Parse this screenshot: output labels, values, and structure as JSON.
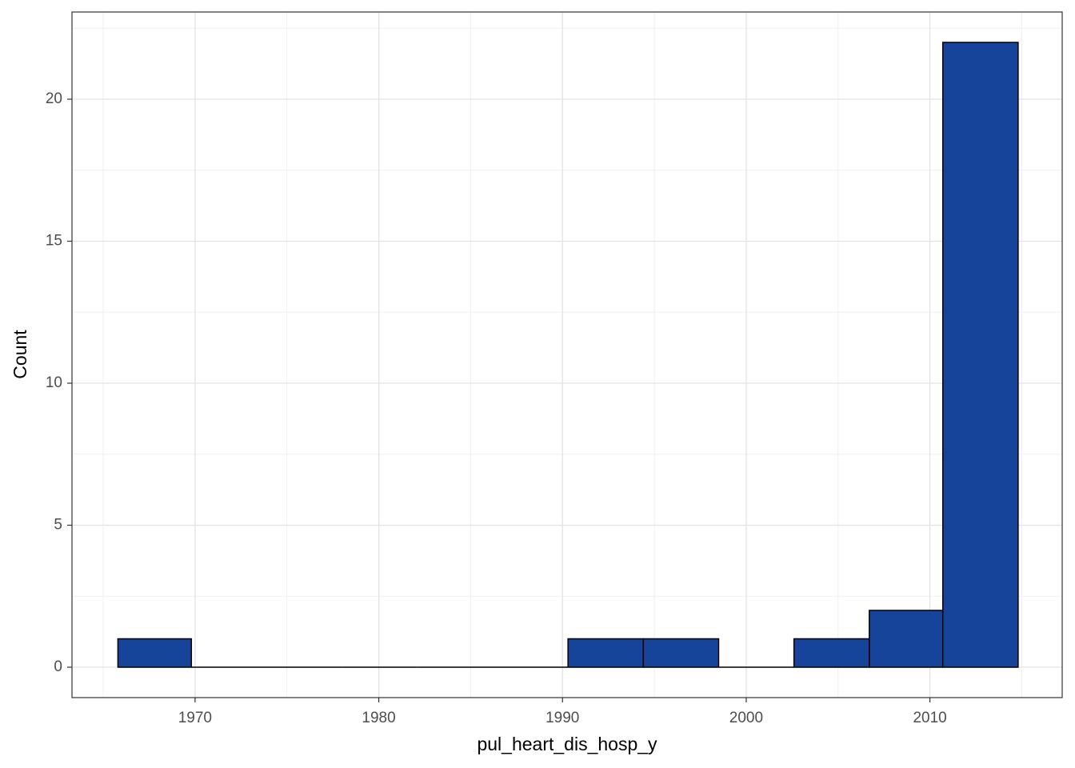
{
  "chart_data": {
    "type": "histogram",
    "x_label": "pul_heart_dis_hosp_y",
    "y_label": "Count",
    "bins": [
      1965.8,
      1969.8,
      1973.9,
      1978.0,
      1982.1,
      1986.2,
      1990.3,
      1994.4,
      1998.5,
      2002.6,
      2006.7,
      2010.7,
      2014.8
    ],
    "counts": [
      1,
      0,
      0,
      0,
      0,
      0,
      1,
      1,
      0,
      1,
      2,
      22
    ],
    "color": "#17449b",
    "edge_color": "#000000",
    "xlim": [
      1963.3,
      2017.2
    ],
    "xticks": [
      1970,
      1980,
      1990,
      2000,
      2010
    ],
    "ylim": [
      -1.07,
      23.07
    ],
    "yticks": [
      0,
      5,
      10,
      15,
      20
    ],
    "grid": true
  }
}
